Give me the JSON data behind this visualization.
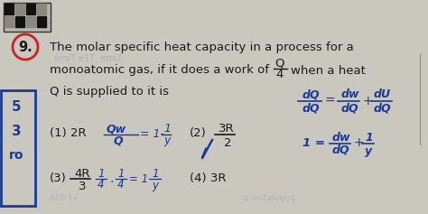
{
  "bg_color": "#cac7be",
  "page_color": "#dedad2",
  "qr_color": "#1a1a1a",
  "circle_color": "#cc2222",
  "blue_box_color": "#1a3a99",
  "text_color": "#1a1a1a",
  "blue_text_color": "#1a3a99",
  "faint_text_color": "#8a9aaa",
  "title1": "The molar specific heat capacity in a process for a",
  "title2_pre": "monoatomic gas, if it does a work of",
  "title2_post": "when a heat",
  "title3": "Q is supplied to it is",
  "opt1": "(1) 2R",
  "opt2": "(2)",
  "opt3": "(3)",
  "opt4": "(4) 3R",
  "frac_3R_num": "3R",
  "frac_3R_den": "2",
  "frac_4R_num": "4R",
  "frac_4R_den": "3"
}
